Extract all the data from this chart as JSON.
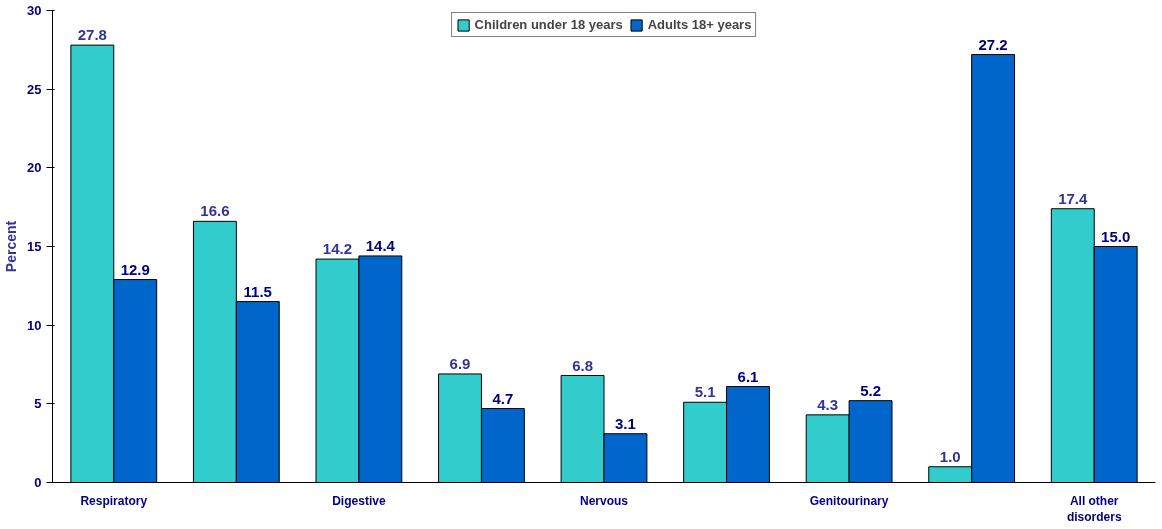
{
  "chart_data": {
    "type": "bar",
    "ylabel": "Percent",
    "categories": [
      "Respiratory",
      null,
      "Digestive",
      null,
      "Nervous",
      null,
      "Genitourinary",
      null,
      "All other disorders"
    ],
    "series": [
      {
        "name": "Children under 18 years",
        "color": "#33cccc",
        "values": [
          27.8,
          16.6,
          14.2,
          6.9,
          6.8,
          5.1,
          4.3,
          1.0,
          17.4
        ],
        "value_labels": [
          "27.8",
          "16.6",
          "14.2",
          "6.9",
          "6.8",
          "5.1",
          "4.3",
          "1.0",
          "17.4"
        ]
      },
      {
        "name": "Adults 18+ years",
        "color": "#0066cc",
        "values": [
          12.9,
          11.5,
          14.4,
          4.7,
          3.1,
          6.1,
          5.2,
          27.2,
          15.0
        ],
        "value_labels": [
          "12.9",
          "11.5",
          "14.4",
          "4.7",
          "3.1",
          "6.1",
          "5.2",
          "27.2",
          "15.0"
        ]
      }
    ],
    "ylim": [
      0,
      30
    ],
    "yticks": [
      0,
      5,
      10,
      15,
      20,
      25,
      30
    ],
    "grid": false,
    "legend": "top"
  }
}
